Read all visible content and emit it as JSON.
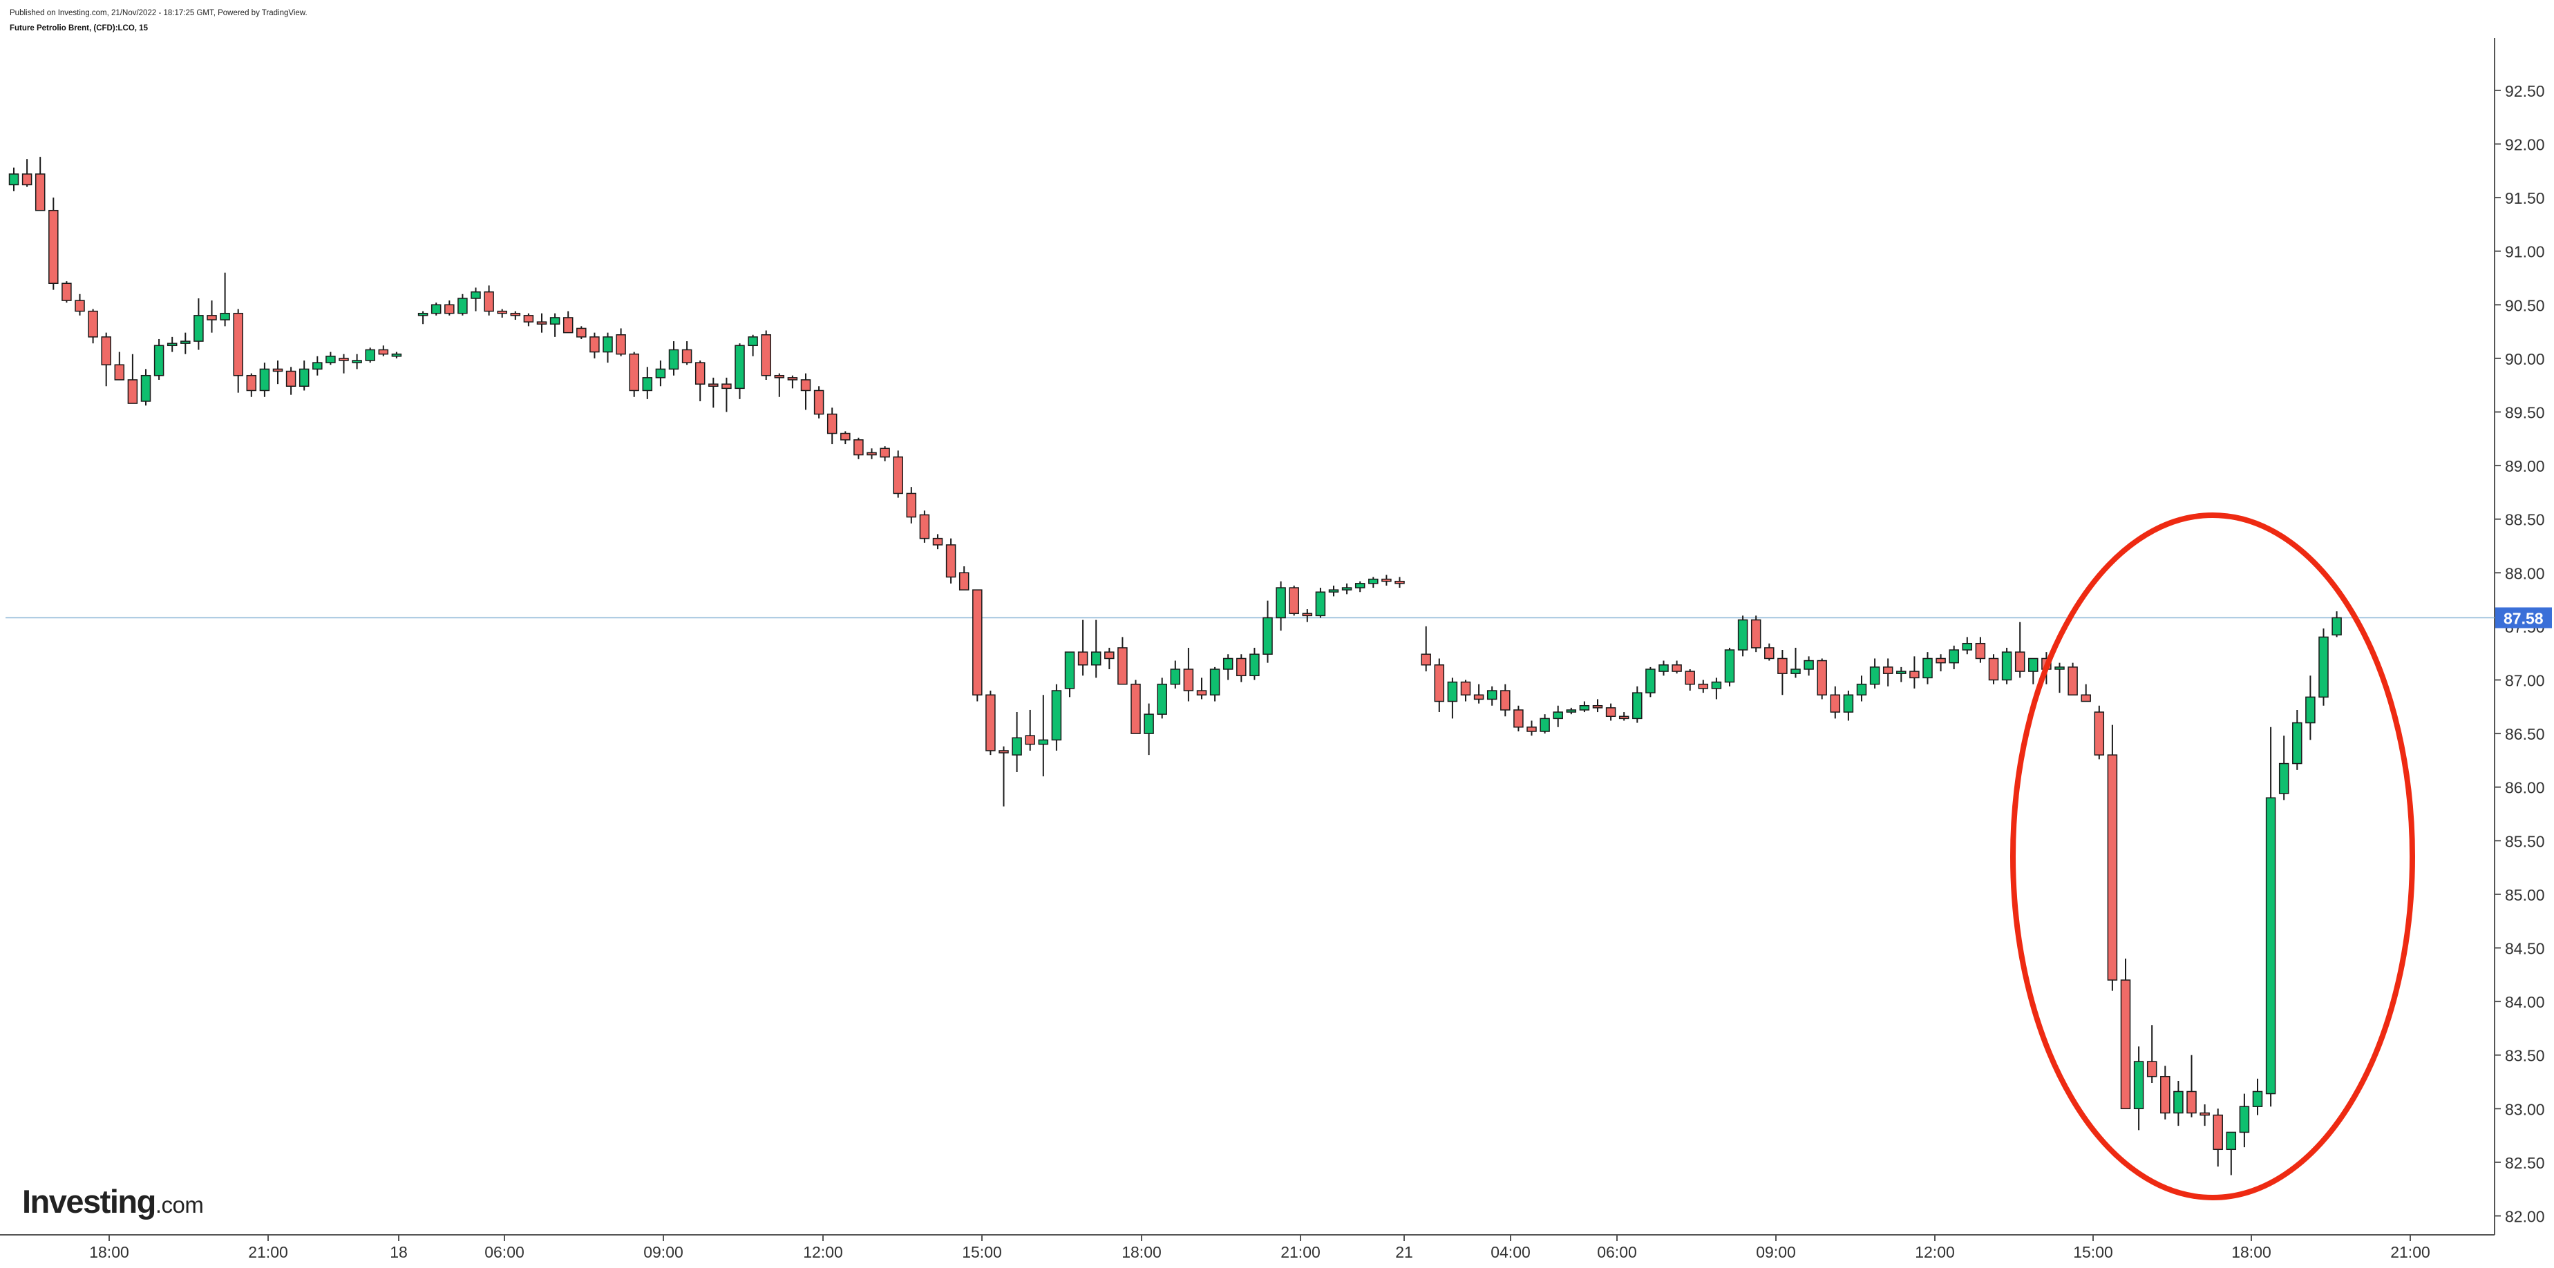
{
  "header": {
    "published": "Published on Investing.com, 21/Nov/2022 - 18:17:25 GMT, Powered by TradingView.",
    "symbol": "Future Petrolio Brent, (CFD):LCO, 15"
  },
  "branding": {
    "logo_main": "Investing",
    "logo_tld": ".com"
  },
  "colors": {
    "up": "#22ab94",
    "down": "#f05350",
    "up_fill": "#0fbf6f",
    "down_fill": "#ef6b67",
    "price_line": "#8fb8d8",
    "price_tag_bg": "#3a6fd8",
    "annotation": "#ee2a12",
    "axis": "#666666"
  },
  "chart_data": {
    "type": "candlestick",
    "title": "Future Petrolio Brent, (CFD):LCO, 15",
    "interval_minutes": 15,
    "ylim": [
      81.8,
      93.2
    ],
    "y_ticks": [
      "82.00",
      "82.50",
      "83.00",
      "83.50",
      "84.00",
      "84.50",
      "85.00",
      "85.50",
      "86.00",
      "86.50",
      "87.00",
      "87.50",
      "88.00",
      "88.50",
      "89.00",
      "89.50",
      "90.00",
      "90.50",
      "91.00",
      "91.50",
      "92.00",
      "92.50"
    ],
    "x_ticks": [
      "18:00",
      "21:00",
      "18",
      "06:00",
      "09:00",
      "12:00",
      "15:00",
      "18:00",
      "21:00",
      "21",
      "04:00",
      "06:00",
      "09:00",
      "12:00",
      "15:00",
      "18:00",
      "21:00"
    ],
    "last_price": "87.58",
    "grid": false,
    "annotation": "red ellipse highlighting the drop and recovery on 21 Nov between about 15:00 and 19:00",
    "candles": [
      [
        91.62,
        91.78,
        91.56,
        91.72
      ],
      [
        91.72,
        91.86,
        91.6,
        91.62
      ],
      [
        91.72,
        91.88,
        91.58,
        91.38
      ],
      [
        91.38,
        91.5,
        90.64,
        90.7
      ],
      [
        90.7,
        90.72,
        90.52,
        90.54
      ],
      [
        90.54,
        90.6,
        90.4,
        90.44
      ],
      [
        90.44,
        90.46,
        90.14,
        90.2
      ],
      [
        90.2,
        90.24,
        89.74,
        89.94
      ],
      [
        89.94,
        90.06,
        89.82,
        89.8
      ],
      [
        89.8,
        90.04,
        89.58,
        89.58
      ],
      [
        89.6,
        89.9,
        89.56,
        89.84
      ],
      [
        89.84,
        90.18,
        89.8,
        90.12
      ],
      [
        90.12,
        90.2,
        90.06,
        90.14
      ],
      [
        90.14,
        90.24,
        90.04,
        90.16
      ],
      [
        90.16,
        90.56,
        90.08,
        90.4
      ],
      [
        90.4,
        90.54,
        90.24,
        90.36
      ],
      [
        90.36,
        90.8,
        90.3,
        90.42
      ],
      [
        90.42,
        90.46,
        89.68,
        89.84
      ],
      [
        89.84,
        89.86,
        89.64,
        89.7
      ],
      [
        89.7,
        89.96,
        89.64,
        89.9
      ],
      [
        89.9,
        89.98,
        89.76,
        89.88
      ],
      [
        89.88,
        89.92,
        89.66,
        89.74
      ],
      [
        89.74,
        89.98,
        89.7,
        89.9
      ],
      [
        89.9,
        90.02,
        89.84,
        89.96
      ],
      [
        89.96,
        90.06,
        89.94,
        90.02
      ],
      [
        90.0,
        90.04,
        89.86,
        89.98
      ],
      [
        89.96,
        90.04,
        89.9,
        89.98
      ],
      [
        89.98,
        90.1,
        89.96,
        90.08
      ],
      [
        90.08,
        90.12,
        90.02,
        90.04
      ],
      [
        90.02,
        90.06,
        90.0,
        90.04
      ],
      null,
      [
        90.4,
        90.44,
        90.32,
        90.42
      ],
      [
        90.42,
        90.52,
        90.4,
        90.5
      ],
      [
        90.5,
        90.54,
        90.4,
        90.42
      ],
      [
        90.42,
        90.6,
        90.4,
        90.56
      ],
      [
        90.56,
        90.66,
        90.44,
        90.62
      ],
      [
        90.62,
        90.68,
        90.4,
        90.44
      ],
      [
        90.44,
        90.46,
        90.38,
        90.42
      ],
      [
        90.42,
        90.44,
        90.36,
        90.4
      ],
      [
        90.4,
        90.42,
        90.3,
        90.34
      ],
      [
        90.34,
        90.42,
        90.24,
        90.32
      ],
      [
        90.32,
        90.42,
        90.2,
        90.38
      ],
      [
        90.38,
        90.44,
        90.24,
        90.24
      ],
      [
        90.28,
        90.3,
        90.18,
        90.2
      ],
      [
        90.2,
        90.24,
        90.0,
        90.06
      ],
      [
        90.06,
        90.24,
        89.96,
        90.2
      ],
      [
        90.22,
        90.28,
        90.02,
        90.04
      ],
      [
        90.04,
        90.06,
        89.64,
        89.7
      ],
      [
        89.7,
        89.92,
        89.62,
        89.82
      ],
      [
        89.82,
        89.98,
        89.74,
        89.9
      ],
      [
        89.9,
        90.16,
        89.84,
        90.08
      ],
      [
        90.08,
        90.16,
        89.94,
        89.96
      ],
      [
        89.96,
        89.98,
        89.6,
        89.76
      ],
      [
        89.76,
        89.82,
        89.54,
        89.74
      ],
      [
        89.76,
        89.82,
        89.5,
        89.72
      ],
      [
        89.72,
        90.14,
        89.62,
        90.12
      ],
      [
        90.12,
        90.22,
        90.02,
        90.2
      ],
      [
        90.22,
        90.26,
        89.8,
        89.84
      ],
      [
        89.84,
        89.86,
        89.64,
        89.82
      ],
      [
        89.82,
        89.84,
        89.72,
        89.8
      ],
      [
        89.8,
        89.86,
        89.52,
        89.7
      ],
      [
        89.7,
        89.74,
        89.44,
        89.48
      ],
      [
        89.48,
        89.54,
        89.2,
        89.3
      ],
      [
        89.3,
        89.32,
        89.2,
        89.24
      ],
      [
        89.24,
        89.26,
        89.06,
        89.1
      ],
      [
        89.12,
        89.16,
        89.06,
        89.1
      ],
      [
        89.16,
        89.18,
        89.04,
        89.08
      ],
      [
        89.08,
        89.14,
        88.7,
        88.74
      ],
      [
        88.74,
        88.8,
        88.46,
        88.52
      ],
      [
        88.54,
        88.58,
        88.28,
        88.32
      ],
      [
        88.32,
        88.36,
        88.22,
        88.26
      ],
      [
        88.26,
        88.32,
        87.9,
        87.96
      ],
      [
        88.0,
        88.06,
        87.86,
        87.84
      ],
      [
        87.84,
        87.84,
        86.8,
        86.86
      ],
      [
        86.86,
        86.9,
        86.3,
        86.34
      ],
      [
        86.34,
        86.38,
        85.82,
        86.32
      ],
      [
        86.3,
        86.7,
        86.14,
        86.46
      ],
      [
        86.48,
        86.72,
        86.34,
        86.4
      ],
      [
        86.4,
        86.86,
        86.1,
        86.44
      ],
      [
        86.44,
        86.96,
        86.34,
        86.9
      ],
      [
        86.92,
        87.26,
        86.84,
        87.26
      ],
      [
        87.26,
        87.56,
        87.04,
        87.14
      ],
      [
        87.14,
        87.56,
        87.02,
        87.26
      ],
      [
        87.26,
        87.3,
        87.1,
        87.2
      ],
      [
        87.3,
        87.4,
        87.12,
        86.96
      ],
      [
        86.96,
        87.0,
        86.5,
        86.5
      ],
      [
        86.5,
        86.78,
        86.3,
        86.68
      ],
      [
        86.68,
        87.02,
        86.64,
        86.96
      ],
      [
        86.96,
        87.18,
        86.92,
        87.1
      ],
      [
        87.1,
        87.3,
        86.8,
        86.9
      ],
      [
        86.9,
        87.02,
        86.82,
        86.86
      ],
      [
        86.86,
        87.12,
        86.8,
        87.1
      ],
      [
        87.1,
        87.24,
        87.0,
        87.2
      ],
      [
        87.2,
        87.24,
        86.98,
        87.04
      ],
      [
        87.04,
        87.3,
        87.0,
        87.24
      ],
      [
        87.24,
        87.74,
        87.16,
        87.58
      ],
      [
        87.58,
        87.92,
        87.46,
        87.86
      ],
      [
        87.86,
        87.88,
        87.6,
        87.62
      ],
      [
        87.62,
        87.66,
        87.54,
        87.6
      ],
      [
        87.6,
        87.86,
        87.58,
        87.82
      ],
      [
        87.82,
        87.88,
        87.78,
        87.84
      ],
      [
        87.84,
        87.9,
        87.8,
        87.86
      ],
      [
        87.86,
        87.92,
        87.82,
        87.9
      ],
      [
        87.9,
        87.96,
        87.86,
        87.94
      ],
      [
        87.94,
        87.98,
        87.88,
        87.92
      ],
      [
        87.92,
        87.96,
        87.86,
        87.9
      ],
      null,
      [
        87.24,
        87.5,
        87.08,
        87.14
      ],
      [
        87.14,
        87.2,
        86.7,
        86.8
      ],
      [
        86.8,
        87.02,
        86.64,
        86.98
      ],
      [
        86.98,
        87.0,
        86.8,
        86.86
      ],
      [
        86.86,
        86.96,
        86.78,
        86.82
      ],
      [
        86.82,
        86.94,
        86.76,
        86.9
      ],
      [
        86.9,
        86.96,
        86.66,
        86.72
      ],
      [
        86.72,
        86.76,
        86.52,
        86.56
      ],
      [
        86.56,
        86.62,
        86.48,
        86.52
      ],
      [
        86.52,
        86.68,
        86.5,
        86.64
      ],
      [
        86.64,
        86.76,
        86.56,
        86.7
      ],
      [
        86.7,
        86.74,
        86.68,
        86.72
      ],
      [
        86.72,
        86.8,
        86.7,
        86.76
      ],
      [
        86.76,
        86.82,
        86.7,
        86.74
      ],
      [
        86.74,
        86.78,
        86.62,
        86.66
      ],
      [
        86.66,
        86.7,
        86.62,
        86.64
      ],
      [
        86.64,
        86.94,
        86.6,
        86.88
      ],
      [
        86.88,
        87.12,
        86.84,
        87.1
      ],
      [
        87.08,
        87.18,
        87.04,
        87.14
      ],
      [
        87.14,
        87.18,
        87.06,
        87.08
      ],
      [
        87.08,
        87.1,
        86.9,
        86.96
      ],
      [
        86.96,
        87.0,
        86.88,
        86.92
      ],
      [
        86.92,
        87.02,
        86.82,
        86.98
      ],
      [
        86.98,
        87.3,
        86.94,
        87.28
      ],
      [
        87.28,
        87.6,
        87.22,
        87.56
      ],
      [
        87.56,
        87.6,
        87.26,
        87.3
      ],
      [
        87.3,
        87.34,
        87.18,
        87.2
      ],
      [
        87.2,
        87.28,
        86.86,
        87.06
      ],
      [
        87.06,
        87.3,
        87.02,
        87.1
      ],
      [
        87.1,
        87.22,
        87.04,
        87.18
      ],
      [
        87.18,
        87.2,
        86.82,
        86.86
      ],
      [
        86.86,
        86.94,
        86.64,
        86.7
      ],
      [
        86.7,
        86.9,
        86.62,
        86.86
      ],
      [
        86.86,
        87.04,
        86.8,
        86.96
      ],
      [
        86.96,
        87.2,
        86.92,
        87.12
      ],
      [
        87.12,
        87.2,
        86.94,
        87.06
      ],
      [
        87.06,
        87.12,
        86.98,
        87.08
      ],
      [
        87.08,
        87.22,
        86.92,
        87.02
      ],
      [
        87.02,
        87.26,
        86.96,
        87.2
      ],
      [
        87.2,
        87.24,
        87.08,
        87.16
      ],
      [
        87.16,
        87.32,
        87.1,
        87.28
      ],
      [
        87.28,
        87.4,
        87.24,
        87.34
      ],
      [
        87.34,
        87.4,
        87.16,
        87.2
      ],
      [
        87.2,
        87.24,
        86.96,
        87.0
      ],
      [
        87.0,
        87.3,
        86.96,
        87.26
      ],
      [
        87.26,
        87.54,
        87.02,
        87.08
      ],
      [
        87.08,
        87.2,
        86.96,
        87.2
      ],
      [
        87.2,
        87.26,
        86.96,
        87.1
      ],
      [
        87.1,
        87.16,
        86.88,
        87.12
      ],
      [
        87.12,
        87.16,
        86.86,
        86.86
      ],
      [
        86.86,
        86.96,
        86.8,
        86.8
      ],
      [
        86.7,
        86.76,
        86.26,
        86.3
      ],
      [
        86.3,
        86.58,
        84.1,
        84.2
      ],
      [
        84.2,
        84.4,
        83.02,
        83.0
      ],
      [
        83.0,
        83.58,
        82.8,
        83.44
      ],
      [
        83.44,
        83.78,
        83.24,
        83.3
      ],
      [
        83.3,
        83.4,
        82.9,
        82.96
      ],
      [
        82.96,
        83.26,
        82.84,
        83.16
      ],
      [
        83.16,
        83.5,
        82.92,
        82.96
      ],
      [
        82.96,
        83.04,
        82.84,
        82.94
      ],
      [
        82.94,
        83.0,
        82.46,
        82.62
      ],
      [
        82.62,
        82.76,
        82.38,
        82.78
      ],
      [
        82.78,
        83.14,
        82.64,
        83.02
      ],
      [
        83.02,
        83.28,
        82.94,
        83.16
      ],
      [
        83.14,
        86.56,
        83.02,
        85.9
      ],
      [
        85.94,
        86.48,
        85.88,
        86.22
      ],
      [
        86.22,
        86.72,
        86.16,
        86.6
      ],
      [
        86.6,
        87.04,
        86.44,
        86.84
      ],
      [
        86.84,
        87.48,
        86.76,
        87.4
      ],
      [
        87.42,
        87.64,
        87.4,
        87.58
      ]
    ]
  }
}
